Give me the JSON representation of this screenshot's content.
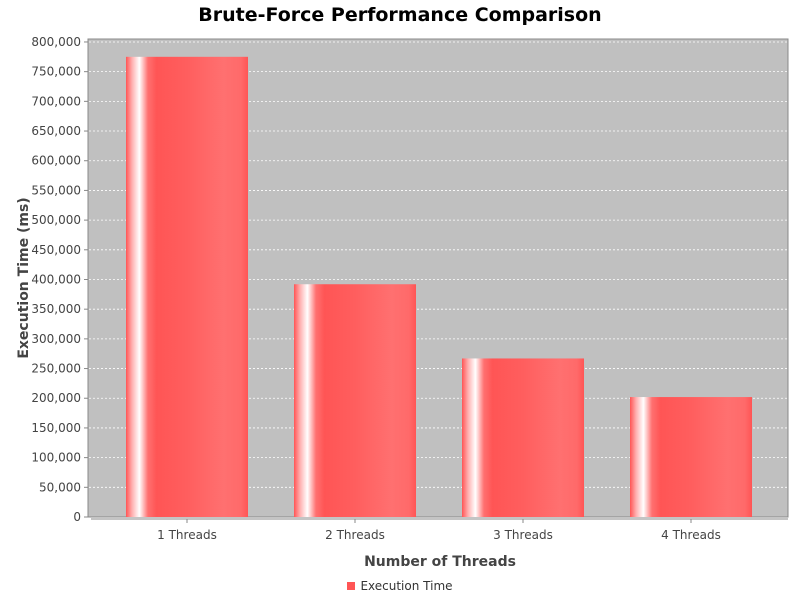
{
  "chart_data": {
    "type": "bar",
    "title": "Brute-Force Performance Comparison",
    "xlabel": "Number of Threads",
    "ylabel": "Execution Time (ms)",
    "categories": [
      "1 Threads",
      "2 Threads",
      "3 Threads",
      "4 Threads"
    ],
    "series": [
      {
        "name": "Execution Time",
        "values": [
          775000,
          392000,
          267000,
          202000
        ]
      }
    ],
    "ylim": [
      0,
      805000
    ],
    "yticks": [
      0,
      50000,
      100000,
      150000,
      200000,
      250000,
      300000,
      350000,
      400000,
      450000,
      500000,
      550000,
      600000,
      650000,
      700000,
      750000,
      800000
    ],
    "ytick_labels": [
      "0",
      "50,000",
      "100,000",
      "150,000",
      "200,000",
      "250,000",
      "300,000",
      "350,000",
      "400,000",
      "450,000",
      "500,000",
      "550,000",
      "600,000",
      "650,000",
      "700,000",
      "750,000",
      "800,000"
    ],
    "grid": true,
    "legend": "bottom-center",
    "colors": {
      "bar": "#ff5555",
      "plot_background": "#c0c0c0",
      "gridline": "#ffffff",
      "axis": "#888888"
    }
  }
}
